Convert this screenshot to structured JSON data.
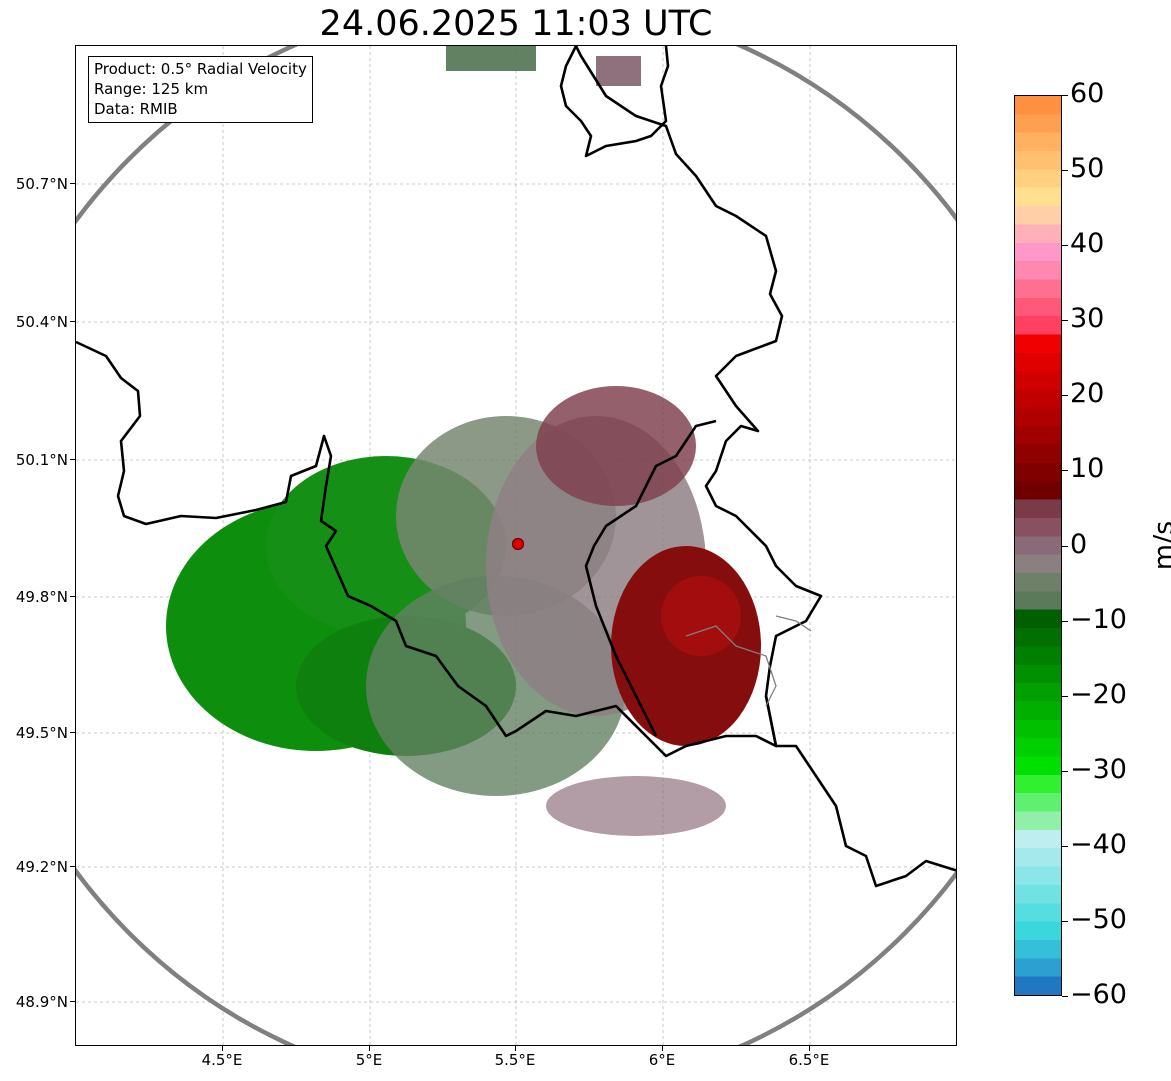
{
  "title": "24.06.2025 11:03 UTC",
  "info_box": {
    "product": "Product: 0.5° Radial Velocity",
    "range": "Range: 125 km",
    "data": "Data: RMIB"
  },
  "axes": {
    "lat_labels": [
      "50.7°N",
      "50.4°N",
      "50.1°N",
      "49.8°N",
      "49.5°N",
      "49.2°N",
      "48.9°N"
    ],
    "lon_labels": [
      "4.5°E",
      "5°E",
      "5.5°E",
      "6°E",
      "6.5°E"
    ]
  },
  "colorbar": {
    "unit": "m/s",
    "tick_labels": [
      "60",
      "50",
      "40",
      "30",
      "20",
      "10",
      "0",
      "−10",
      "−20",
      "−30",
      "−40",
      "−50",
      "−60"
    ],
    "colors": [
      "#1f78c1",
      "#2ca0d0",
      "#33c0d8",
      "#3ad8dc",
      "#55dde0",
      "#70e2e4",
      "#8ae6e8",
      "#a4eaec",
      "#bfeef0",
      "#90f0a8",
      "#60f070",
      "#30f030",
      "#00e000",
      "#00d000",
      "#00c000",
      "#00b000",
      "#00a000",
      "#009000",
      "#008000",
      "#007000",
      "#006000",
      "#5a7a5a",
      "#6e8068",
      "#8a8080",
      "#8a6a78",
      "#885060",
      "#7a3a48",
      "#700000",
      "#800000",
      "#900000",
      "#a00000",
      "#b00000",
      "#c00000",
      "#d00000",
      "#e00000",
      "#f00000",
      "#ff4060",
      "#ff5878",
      "#ff7090",
      "#ff88b0",
      "#ff98c8",
      "#ffb0b8",
      "#ffd0a8",
      "#ffe090",
      "#ffd080",
      "#ffc070",
      "#ffb060",
      "#ffa050",
      "#ff9040"
    ]
  },
  "radar": {
    "site": "radar-site",
    "range_ring_color": "#808080",
    "border_color": "#000000"
  }
}
